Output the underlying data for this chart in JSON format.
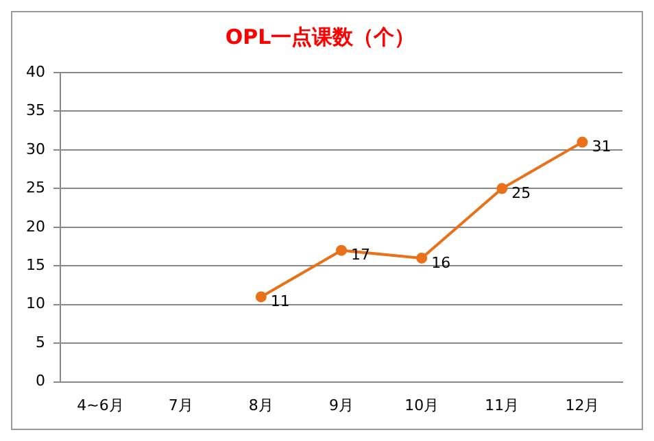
{
  "chart_data": {
    "type": "line",
    "title": "OPL一点课数（个）",
    "categories": [
      "4~6月",
      "7月",
      "8月",
      "9月",
      "10月",
      "11月",
      "12月"
    ],
    "series": [
      {
        "color": "#e8711a",
        "values": [
          null,
          null,
          11,
          17,
          16,
          25,
          31
        ]
      }
    ],
    "ylim": [
      0,
      40
    ],
    "yticks": [
      0,
      5,
      10,
      15,
      20,
      25,
      30,
      35,
      40
    ],
    "grid": "y",
    "legend": false,
    "marker": "circle",
    "data_labels": true
  }
}
